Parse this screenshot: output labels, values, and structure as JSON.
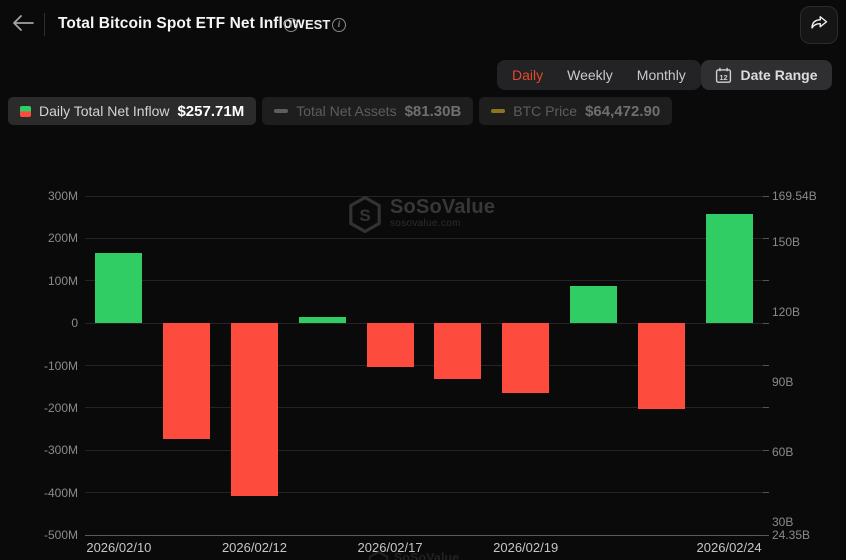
{
  "header": {
    "title": "Total Bitcoin Spot ETF Net Inflow",
    "timezone": "EST",
    "info_glyph": "i"
  },
  "controls": {
    "tabs": [
      {
        "label": "Daily",
        "active": true
      },
      {
        "label": "Weekly",
        "active": false
      },
      {
        "label": "Monthly",
        "active": false
      }
    ],
    "date_range": {
      "label": "Date Range",
      "calendar_day": "12"
    }
  },
  "legend": [
    {
      "label": "Daily Total Net Inflow",
      "value": "$257.71M",
      "icon": "split-square-green-red",
      "active": true
    },
    {
      "label": "Total Net Assets",
      "value": "$81.30B",
      "icon": "dash",
      "dash_color": "#5e5e5e",
      "active": false
    },
    {
      "label": "BTC Price",
      "value": "$64,472.90",
      "icon": "dash",
      "dash_color": "#8f7420",
      "active": false
    }
  ],
  "watermark": {
    "name": "SoSoValue",
    "domain": "sosovalue.com",
    "logo_letter": "S"
  },
  "chart_data": {
    "type": "bar",
    "title": "Total Bitcoin Spot ETF Net Inflow",
    "series_name": "Daily Total Net Inflow (USD, millions)",
    "bar_count": 10,
    "values_m_usd": [
      165,
      -274,
      -407,
      14,
      -104,
      -133,
      -166,
      87,
      -202,
      257.71
    ],
    "latest_value_label": "$257.71M",
    "x_tick_labels": [
      {
        "label": "2026/02/10",
        "bar_index": 0
      },
      {
        "label": "2026/02/12",
        "bar_index": 2
      },
      {
        "label": "2026/02/17",
        "bar_index": 4
      },
      {
        "label": "2026/02/19",
        "bar_index": 6
      },
      {
        "label": "2026/02/24",
        "bar_index": 9
      }
    ],
    "left_axis": {
      "unit": "M",
      "min": -500,
      "max": 300,
      "tick_interval": 100,
      "tick_labels": [
        "300M",
        "200M",
        "100M",
        "0",
        "-100M",
        "-200M",
        "-300M",
        "-400M",
        "-500M"
      ]
    },
    "right_axis": {
      "unit": "B",
      "min": 24.35,
      "max": 169.54,
      "labels": [
        {
          "text": "169.54B",
          "value": 169.54
        },
        {
          "text": "150B",
          "value": 150
        },
        {
          "text": "120B",
          "value": 120
        },
        {
          "text": "90B",
          "value": 90
        },
        {
          "text": "60B",
          "value": 60
        },
        {
          "text": "30B",
          "value": 30
        },
        {
          "text": "24.35B",
          "value": 24.35
        }
      ]
    },
    "colors": {
      "positive": "#2fcd64",
      "negative": "#fd4b3e",
      "accent_tab": "#e14b2c"
    },
    "grid": true,
    "legend_position": "top-left"
  }
}
